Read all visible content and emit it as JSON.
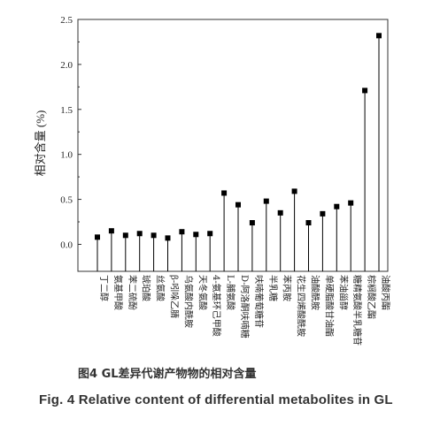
{
  "caption_cn": "图4 GL差异代谢产物物的相对含量",
  "caption_en": "Fig. 4 Relative content of differential metabolites in GL",
  "chart_data": {
    "type": "stem",
    "ylabel": "相对含量 (%)",
    "ylim": [
      -0.3,
      2.5
    ],
    "yticks": [
      "0.0",
      "0.5",
      "1.0",
      "1.5",
      "2.0",
      "2.5"
    ],
    "categories": [
      "丁二醇",
      "氨基甲酸",
      "苯二硫酚",
      "琥珀酸",
      "丝氨酸",
      "β-吲哚乙腈",
      "乌氨酸内酰胺",
      "天冬氨酸",
      "4-氨基环己甲酸",
      "L-脯氨酸",
      "D-阿洛酮呋喃糖",
      "呋喃葡萄糖苷",
      "半乳糖",
      "苯丙胺",
      "花生四烯酸酰胺",
      "油酸酰胺",
      "单硬脂酸甘油酯",
      "苯油甾醇",
      "糖精氨酸半乳糖苷",
      "棕榈酸乙酯",
      "油酸丙酯"
    ],
    "values": [
      0.08,
      0.15,
      0.1,
      0.12,
      0.1,
      0.07,
      0.14,
      0.11,
      0.12,
      0.57,
      0.44,
      0.24,
      0.48,
      0.35,
      0.59,
      0.24,
      0.34,
      0.42,
      0.46,
      1.71,
      2.32
    ],
    "marker": "square",
    "color": "#000000",
    "grid": false
  }
}
